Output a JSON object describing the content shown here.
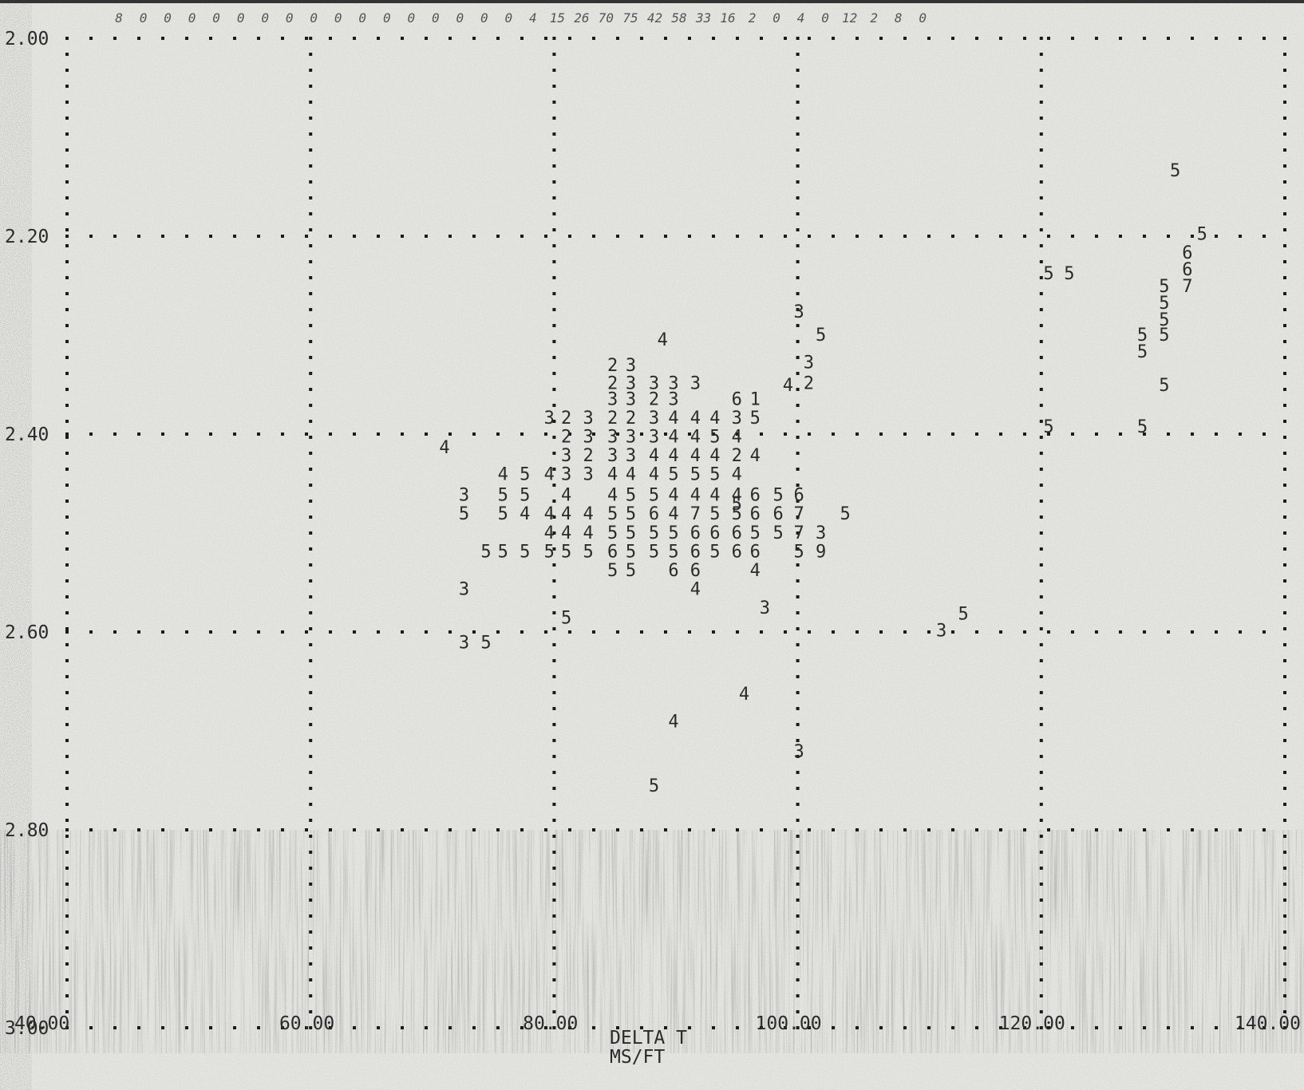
{
  "chart_data": {
    "type": "scatter",
    "title": "",
    "xlabel": "DELTA T",
    "xunits": "MS/FT",
    "ylabel": "",
    "xlim": [
      40,
      140
    ],
    "ylim": [
      2.0,
      3.0
    ],
    "y_inverted": true,
    "grid": true,
    "x_ticks": [
      {
        "value": 40,
        "label": "40.00"
      },
      {
        "value": 60,
        "label": "60.00"
      },
      {
        "value": 80,
        "label": "80.00"
      },
      {
        "value": 100,
        "label": "100.00"
      },
      {
        "value": 120,
        "label": "120.00"
      },
      {
        "value": 140,
        "label": "140.00"
      }
    ],
    "y_ticks": [
      {
        "value": 2.0,
        "label": "2.00"
      },
      {
        "value": 2.2,
        "label": "2.20"
      },
      {
        "value": 2.4,
        "label": "2.40"
      },
      {
        "value": 2.6,
        "label": "2.60"
      },
      {
        "value": 2.8,
        "label": "2.80"
      },
      {
        "value": 3.0,
        "label": "3.00"
      }
    ],
    "column_counts": [
      {
        "x": 44,
        "label": "8"
      },
      {
        "x": 46,
        "label": "0"
      },
      {
        "x": 48,
        "label": "0"
      },
      {
        "x": 50,
        "label": "0"
      },
      {
        "x": 52,
        "label": "0"
      },
      {
        "x": 54,
        "label": "0"
      },
      {
        "x": 56,
        "label": "0"
      },
      {
        "x": 58,
        "label": "0"
      },
      {
        "x": 60,
        "label": "0"
      },
      {
        "x": 62,
        "label": "0"
      },
      {
        "x": 64,
        "label": "0"
      },
      {
        "x": 66,
        "label": "0"
      },
      {
        "x": 68,
        "label": "0"
      },
      {
        "x": 70,
        "label": "0"
      },
      {
        "x": 72,
        "label": "0"
      },
      {
        "x": 74,
        "label": "0"
      },
      {
        "x": 76,
        "label": "0"
      },
      {
        "x": 78,
        "label": "4"
      },
      {
        "x": 80,
        "label": "15"
      },
      {
        "x": 82,
        "label": "26"
      },
      {
        "x": 84,
        "label": "70"
      },
      {
        "x": 86,
        "label": "75"
      },
      {
        "x": 88,
        "label": "42"
      },
      {
        "x": 90,
        "label": "58"
      },
      {
        "x": 92,
        "label": "33"
      },
      {
        "x": 94,
        "label": "16"
      },
      {
        "x": 96,
        "label": "2"
      },
      {
        "x": 98,
        "label": "0"
      },
      {
        "x": 100,
        "label": "4"
      },
      {
        "x": 102,
        "label": "0"
      },
      {
        "x": 104,
        "label": "12"
      },
      {
        "x": 106,
        "label": "2"
      },
      {
        "x": 108,
        "label": "8"
      },
      {
        "x": 110,
        "label": "0"
      }
    ],
    "points": [
      {
        "x": 131.0,
        "y": 2.133,
        "label": "5"
      },
      {
        "x": 133.2,
        "y": 2.197,
        "label": "5"
      },
      {
        "x": 132.0,
        "y": 2.216,
        "label": "6"
      },
      {
        "x": 132.0,
        "y": 2.233,
        "label": "6"
      },
      {
        "x": 132.0,
        "y": 2.25,
        "label": "7"
      },
      {
        "x": 130.1,
        "y": 2.25,
        "label": "5"
      },
      {
        "x": 120.6,
        "y": 2.237,
        "label": "5"
      },
      {
        "x": 122.3,
        "y": 2.237,
        "label": "5"
      },
      {
        "x": 130.1,
        "y": 2.267,
        "label": "5"
      },
      {
        "x": 130.1,
        "y": 2.284,
        "label": "5"
      },
      {
        "x": 128.3,
        "y": 2.299,
        "label": "5"
      },
      {
        "x": 128.3,
        "y": 2.316,
        "label": "5"
      },
      {
        "x": 130.1,
        "y": 2.299,
        "label": "5"
      },
      {
        "x": 130.1,
        "y": 2.35,
        "label": "5"
      },
      {
        "x": 120.6,
        "y": 2.392,
        "label": "5"
      },
      {
        "x": 128.3,
        "y": 2.392,
        "label": "5"
      },
      {
        "x": 100.1,
        "y": 2.276,
        "label": "3"
      },
      {
        "x": 101.9,
        "y": 2.299,
        "label": "5"
      },
      {
        "x": 88.9,
        "y": 2.304,
        "label": "4"
      },
      {
        "x": 100.9,
        "y": 2.327,
        "label": "3"
      },
      {
        "x": 100.9,
        "y": 2.348,
        "label": "2"
      },
      {
        "x": 99.2,
        "y": 2.35,
        "label": "4"
      },
      {
        "x": 95.0,
        "y": 2.47,
        "label": "5"
      },
      {
        "x": 71.0,
        "y": 2.413,
        "label": "4"
      },
      {
        "x": 72.6,
        "y": 2.461,
        "label": "3"
      },
      {
        "x": 72.6,
        "y": 2.48,
        "label": "5"
      },
      {
        "x": 72.6,
        "y": 2.556,
        "label": "3"
      },
      {
        "x": 72.6,
        "y": 2.61,
        "label": "3"
      },
      {
        "x": 74.4,
        "y": 2.61,
        "label": "5"
      },
      {
        "x": 81.0,
        "y": 2.585,
        "label": "5"
      },
      {
        "x": 88.2,
        "y": 2.755,
        "label": "5"
      },
      {
        "x": 100.1,
        "y": 2.72,
        "label": "3"
      },
      {
        "x": 89.8,
        "y": 2.69,
        "label": "4"
      },
      {
        "x": 95.6,
        "y": 2.662,
        "label": "4"
      },
      {
        "x": 113.6,
        "y": 2.581,
        "label": "5"
      },
      {
        "x": 111.8,
        "y": 2.598,
        "label": "3"
      },
      {
        "x": 84.8,
        "y": 2.33,
        "label": "2"
      },
      {
        "x": 86.3,
        "y": 2.33,
        "label": "3"
      },
      {
        "x": 84.8,
        "y": 2.348,
        "label": "2"
      },
      {
        "x": 86.3,
        "y": 2.348,
        "label": "3"
      },
      {
        "x": 88.2,
        "y": 2.348,
        "label": "3"
      },
      {
        "x": 89.8,
        "y": 2.348,
        "label": "3"
      },
      {
        "x": 91.6,
        "y": 2.348,
        "label": "3"
      },
      {
        "x": 84.8,
        "y": 2.364,
        "label": "3"
      },
      {
        "x": 86.3,
        "y": 2.364,
        "label": "3"
      },
      {
        "x": 88.2,
        "y": 2.364,
        "label": "2"
      },
      {
        "x": 89.8,
        "y": 2.364,
        "label": "3"
      },
      {
        "x": 95.0,
        "y": 2.364,
        "label": "6"
      },
      {
        "x": 96.5,
        "y": 2.364,
        "label": "1"
      },
      {
        "x": 79.6,
        "y": 2.383,
        "label": "3"
      },
      {
        "x": 81.0,
        "y": 2.383,
        "label": "2"
      },
      {
        "x": 82.8,
        "y": 2.383,
        "label": "3"
      },
      {
        "x": 84.8,
        "y": 2.383,
        "label": "2"
      },
      {
        "x": 86.3,
        "y": 2.383,
        "label": "2"
      },
      {
        "x": 88.2,
        "y": 2.383,
        "label": "3"
      },
      {
        "x": 89.8,
        "y": 2.383,
        "label": "4"
      },
      {
        "x": 91.6,
        "y": 2.383,
        "label": "4"
      },
      {
        "x": 93.2,
        "y": 2.383,
        "label": "4"
      },
      {
        "x": 95.0,
        "y": 2.383,
        "label": "3"
      },
      {
        "x": 96.5,
        "y": 2.383,
        "label": "5"
      },
      {
        "x": 81.0,
        "y": 2.402,
        "label": "2"
      },
      {
        "x": 82.8,
        "y": 2.402,
        "label": "3"
      },
      {
        "x": 84.8,
        "y": 2.402,
        "label": "3"
      },
      {
        "x": 86.3,
        "y": 2.402,
        "label": "3"
      },
      {
        "x": 88.2,
        "y": 2.402,
        "label": "3"
      },
      {
        "x": 89.8,
        "y": 2.402,
        "label": "4"
      },
      {
        "x": 91.6,
        "y": 2.402,
        "label": "4"
      },
      {
        "x": 93.2,
        "y": 2.402,
        "label": "5"
      },
      {
        "x": 95.0,
        "y": 2.402,
        "label": "4"
      },
      {
        "x": 81.0,
        "y": 2.421,
        "label": "3"
      },
      {
        "x": 82.8,
        "y": 2.421,
        "label": "2"
      },
      {
        "x": 84.8,
        "y": 2.421,
        "label": "3"
      },
      {
        "x": 86.3,
        "y": 2.421,
        "label": "3"
      },
      {
        "x": 88.2,
        "y": 2.421,
        "label": "4"
      },
      {
        "x": 89.8,
        "y": 2.421,
        "label": "4"
      },
      {
        "x": 91.6,
        "y": 2.421,
        "label": "4"
      },
      {
        "x": 93.2,
        "y": 2.421,
        "label": "4"
      },
      {
        "x": 95.0,
        "y": 2.421,
        "label": "2"
      },
      {
        "x": 96.5,
        "y": 2.421,
        "label": "4"
      },
      {
        "x": 75.8,
        "y": 2.44,
        "label": "4"
      },
      {
        "x": 77.6,
        "y": 2.44,
        "label": "5"
      },
      {
        "x": 79.6,
        "y": 2.44,
        "label": "4"
      },
      {
        "x": 81.0,
        "y": 2.44,
        "label": "3"
      },
      {
        "x": 82.8,
        "y": 2.44,
        "label": "3"
      },
      {
        "x": 84.8,
        "y": 2.44,
        "label": "4"
      },
      {
        "x": 86.3,
        "y": 2.44,
        "label": "4"
      },
      {
        "x": 88.2,
        "y": 2.44,
        "label": "4"
      },
      {
        "x": 89.8,
        "y": 2.44,
        "label": "5"
      },
      {
        "x": 91.6,
        "y": 2.44,
        "label": "5"
      },
      {
        "x": 93.2,
        "y": 2.44,
        "label": "5"
      },
      {
        "x": 95.0,
        "y": 2.44,
        "label": "4"
      },
      {
        "x": 75.8,
        "y": 2.461,
        "label": "5"
      },
      {
        "x": 77.6,
        "y": 2.461,
        "label": "5"
      },
      {
        "x": 81.0,
        "y": 2.461,
        "label": "4"
      },
      {
        "x": 84.8,
        "y": 2.461,
        "label": "4"
      },
      {
        "x": 86.3,
        "y": 2.461,
        "label": "5"
      },
      {
        "x": 88.2,
        "y": 2.461,
        "label": "5"
      },
      {
        "x": 89.8,
        "y": 2.461,
        "label": "4"
      },
      {
        "x": 91.6,
        "y": 2.461,
        "label": "4"
      },
      {
        "x": 93.2,
        "y": 2.461,
        "label": "4"
      },
      {
        "x": 95.0,
        "y": 2.461,
        "label": "4"
      },
      {
        "x": 96.5,
        "y": 2.461,
        "label": "6"
      },
      {
        "x": 98.4,
        "y": 2.461,
        "label": "5"
      },
      {
        "x": 100.1,
        "y": 2.461,
        "label": "6"
      },
      {
        "x": 75.8,
        "y": 2.48,
        "label": "5"
      },
      {
        "x": 77.6,
        "y": 2.48,
        "label": "4"
      },
      {
        "x": 79.6,
        "y": 2.48,
        "label": "4"
      },
      {
        "x": 81.0,
        "y": 2.48,
        "label": "4"
      },
      {
        "x": 82.8,
        "y": 2.48,
        "label": "4"
      },
      {
        "x": 84.8,
        "y": 2.48,
        "label": "5"
      },
      {
        "x": 86.3,
        "y": 2.48,
        "label": "5"
      },
      {
        "x": 88.2,
        "y": 2.48,
        "label": "6"
      },
      {
        "x": 89.8,
        "y": 2.48,
        "label": "4"
      },
      {
        "x": 91.6,
        "y": 2.48,
        "label": "7"
      },
      {
        "x": 93.2,
        "y": 2.48,
        "label": "5"
      },
      {
        "x": 95.0,
        "y": 2.48,
        "label": "5"
      },
      {
        "x": 96.5,
        "y": 2.48,
        "label": "6"
      },
      {
        "x": 98.4,
        "y": 2.48,
        "label": "6"
      },
      {
        "x": 100.1,
        "y": 2.48,
        "label": "7"
      },
      {
        "x": 103.9,
        "y": 2.48,
        "label": "5"
      },
      {
        "x": 79.6,
        "y": 2.499,
        "label": "4"
      },
      {
        "x": 81.0,
        "y": 2.499,
        "label": "4"
      },
      {
        "x": 82.8,
        "y": 2.499,
        "label": "4"
      },
      {
        "x": 84.8,
        "y": 2.499,
        "label": "5"
      },
      {
        "x": 86.3,
        "y": 2.499,
        "label": "5"
      },
      {
        "x": 88.2,
        "y": 2.499,
        "label": "5"
      },
      {
        "x": 89.8,
        "y": 2.499,
        "label": "5"
      },
      {
        "x": 91.6,
        "y": 2.499,
        "label": "6"
      },
      {
        "x": 93.2,
        "y": 2.499,
        "label": "6"
      },
      {
        "x": 95.0,
        "y": 2.499,
        "label": "6"
      },
      {
        "x": 96.5,
        "y": 2.499,
        "label": "5"
      },
      {
        "x": 98.4,
        "y": 2.499,
        "label": "5"
      },
      {
        "x": 100.1,
        "y": 2.499,
        "label": "7"
      },
      {
        "x": 101.9,
        "y": 2.499,
        "label": "3"
      },
      {
        "x": 74.4,
        "y": 2.518,
        "label": "5"
      },
      {
        "x": 75.8,
        "y": 2.518,
        "label": "5"
      },
      {
        "x": 77.6,
        "y": 2.518,
        "label": "5"
      },
      {
        "x": 79.6,
        "y": 2.518,
        "label": "5"
      },
      {
        "x": 81.0,
        "y": 2.518,
        "label": "5"
      },
      {
        "x": 82.8,
        "y": 2.518,
        "label": "5"
      },
      {
        "x": 84.8,
        "y": 2.518,
        "label": "6"
      },
      {
        "x": 86.3,
        "y": 2.518,
        "label": "5"
      },
      {
        "x": 88.2,
        "y": 2.518,
        "label": "5"
      },
      {
        "x": 89.8,
        "y": 2.518,
        "label": "5"
      },
      {
        "x": 91.6,
        "y": 2.518,
        "label": "6"
      },
      {
        "x": 93.2,
        "y": 2.518,
        "label": "5"
      },
      {
        "x": 95.0,
        "y": 2.518,
        "label": "6"
      },
      {
        "x": 96.5,
        "y": 2.518,
        "label": "6"
      },
      {
        "x": 100.1,
        "y": 2.518,
        "label": "5"
      },
      {
        "x": 101.9,
        "y": 2.518,
        "label": "9"
      },
      {
        "x": 84.8,
        "y": 2.537,
        "label": "5"
      },
      {
        "x": 86.3,
        "y": 2.537,
        "label": "5"
      },
      {
        "x": 89.8,
        "y": 2.537,
        "label": "6"
      },
      {
        "x": 91.6,
        "y": 2.537,
        "label": "6"
      },
      {
        "x": 91.6,
        "y": 2.556,
        "label": "4"
      },
      {
        "x": 96.5,
        "y": 2.537,
        "label": "4"
      },
      {
        "x": 97.3,
        "y": 2.575,
        "label": "3"
      }
    ]
  }
}
